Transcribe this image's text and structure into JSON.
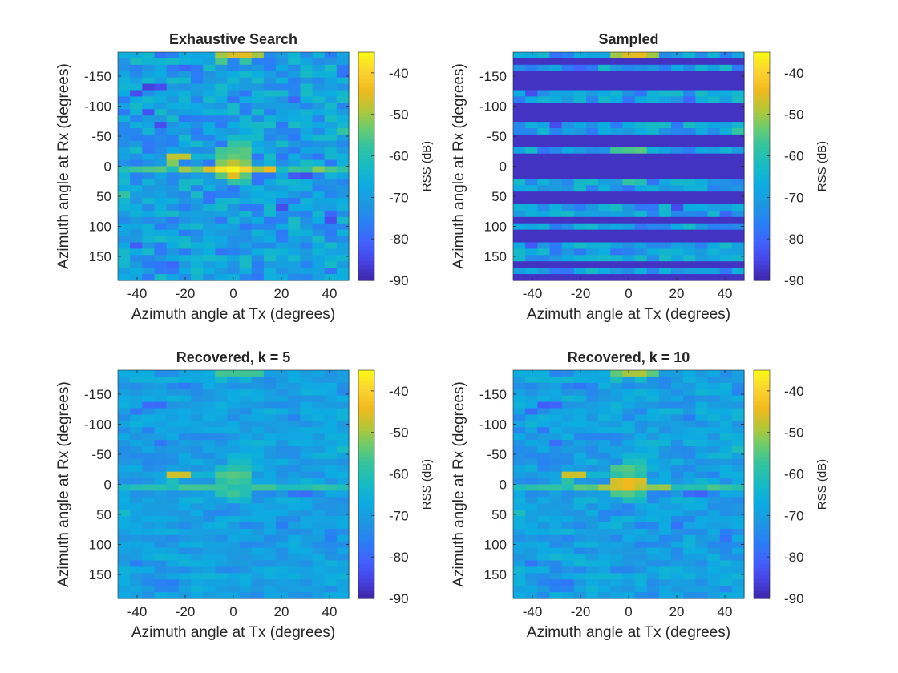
{
  "colorbar": {
    "label": "RSS (dB)",
    "ticks": [
      -40,
      -50,
      -60,
      -70,
      -80,
      -90
    ],
    "range": [
      -90,
      -35
    ]
  },
  "colormap": [
    "#3e26a8",
    "#4744e6",
    "#4162fd",
    "#2a7ef5",
    "#1e98e0",
    "#0cace2",
    "#16bac5",
    "#31c3a1",
    "#6bcb6e",
    "#b5c635",
    "#f0b91e",
    "#fcd42f",
    "#f9fb15"
  ],
  "chart_data": [
    {
      "type": "heatmap",
      "title": "Exhaustive Search",
      "xlabel": "Azimuth angle at Tx (degrees)",
      "ylabel": "Azimuth angle at Rx (degrees)",
      "xticks": [
        "-40",
        "-20",
        "0",
        "20",
        "40"
      ],
      "yticks": [
        "-150",
        "-100",
        "-50",
        "0",
        "50",
        "100",
        "150"
      ],
      "x_range": [
        -48,
        48
      ],
      "y_range": [
        -190,
        190
      ],
      "mode": "exhaustive",
      "colorbar_label": "RSS (dB)"
    },
    {
      "type": "heatmap",
      "title": "Sampled",
      "xlabel": "Azimuth angle at Tx (degrees)",
      "ylabel": "Azimuth angle at Rx (degrees)",
      "xticks": [
        "-40",
        "-20",
        "0",
        "20",
        "40"
      ],
      "yticks": [
        "-150",
        "-100",
        "-50",
        "0",
        "50",
        "100",
        "150"
      ],
      "x_range": [
        -48,
        48
      ],
      "y_range": [
        -190,
        190
      ],
      "mode": "sampled",
      "colorbar_label": "RSS (dB)"
    },
    {
      "type": "heatmap",
      "title": "Recovered, k = 5",
      "xlabel": "Azimuth angle at Tx (degrees)",
      "ylabel": "Azimuth angle at Rx (degrees)",
      "xticks": [
        "-40",
        "-20",
        "0",
        "20",
        "40"
      ],
      "yticks": [
        "-150",
        "-100",
        "-50",
        "0",
        "50",
        "100",
        "150"
      ],
      "x_range": [
        -48,
        48
      ],
      "y_range": [
        -190,
        190
      ],
      "mode": "recovered5",
      "colorbar_label": "RSS (dB)"
    },
    {
      "type": "heatmap",
      "title": "Recovered, k = 10",
      "xlabel": "Azimuth angle at Tx (degrees)",
      "ylabel": "Azimuth angle at Rx (degrees)",
      "xticks": [
        "-40",
        "-20",
        "0",
        "20",
        "40"
      ],
      "yticks": [
        "-150",
        "-100",
        "-50",
        "0",
        "50",
        "100",
        "150"
      ],
      "x_range": [
        -48,
        48
      ],
      "y_range": [
        -190,
        190
      ],
      "mode": "recovered10",
      "colorbar_label": "RSS (dB)"
    }
  ]
}
